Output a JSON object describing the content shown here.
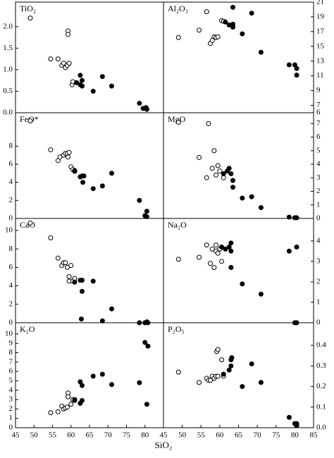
{
  "x_label": "SiO₂",
  "chart_data": [
    {
      "type": "scatter",
      "title": "TiO₂",
      "y_axis_side": "left",
      "xlim": [
        45,
        85
      ],
      "ylim": [
        0,
        2.57
      ],
      "yticks": [
        {
          "value": 0,
          "label": "0.0"
        },
        0.5,
        {
          "value": 1,
          "label": "1.0"
        },
        1.5,
        {
          "value": 2,
          "label": "2.0"
        }
      ],
      "series": [
        {
          "marker": "open",
          "color": "#000000",
          "x": [
            49,
            54.5,
            56.5,
            57.5,
            58,
            58.5,
            59,
            59.2,
            59.2,
            59.5,
            60.3,
            60.5
          ],
          "values": [
            2.2,
            1.25,
            1.25,
            1.1,
            1.15,
            1.05,
            1.1,
            1.9,
            1.82,
            1.15,
            0.65,
            0.72
          ]
        },
        {
          "marker": "filled",
          "color": "#000000",
          "x": [
            61.5,
            62.5,
            62.5,
            63,
            63,
            66,
            68.5,
            71,
            78.5,
            79.5,
            80.5,
            80.3
          ],
          "values": [
            0.7,
            0.87,
            0.65,
            0.75,
            0.62,
            0.5,
            0.84,
            0.62,
            0.22,
            0.1,
            0.08,
            0.12
          ]
        }
      ]
    },
    {
      "type": "scatter",
      "title": "Al₂O₃",
      "y_axis_side": "right",
      "xlim": [
        45,
        85
      ],
      "ylim": [
        6,
        21
      ],
      "yticks": [
        6,
        7,
        9,
        11,
        13,
        15,
        17,
        19,
        21
      ],
      "series": [
        {
          "marker": "open",
          "color": "#000000",
          "x": [
            49,
            54.5,
            56.5,
            57.5,
            58,
            58.5,
            59,
            59.5,
            60.5,
            61
          ],
          "values": [
            16.2,
            17.2,
            19.7,
            15.4,
            15.8,
            16.3,
            16.2,
            16.3,
            18.5,
            18.4
          ]
        },
        {
          "marker": "filled",
          "color": "#000000",
          "x": [
            61.5,
            62.5,
            63.5,
            63.5,
            63.5,
            66,
            68.5,
            71,
            78.5,
            80,
            80.5,
            80.5
          ],
          "values": [
            18.3,
            17.9,
            20.3,
            17.6,
            18,
            16.7,
            19.5,
            14.2,
            12.5,
            12.5,
            11.1,
            12
          ]
        }
      ]
    },
    {
      "type": "scatter",
      "title": "FeO*",
      "y_axis_side": "left",
      "xlim": [
        45,
        85
      ],
      "ylim": [
        0,
        11.7
      ],
      "yticks": [
        0,
        2,
        4,
        6,
        8
      ],
      "series": [
        {
          "marker": "open",
          "color": "#000000",
          "x": [
            49,
            54.5,
            56.5,
            57,
            58,
            58.5,
            59,
            59.2,
            59.5,
            60,
            60.5,
            61
          ],
          "values": [
            10.8,
            7.6,
            6.4,
            6.8,
            7,
            7.2,
            7.2,
            6.8,
            7.3,
            5.7,
            5.4,
            5.2
          ]
        },
        {
          "marker": "filled",
          "color": "#000000",
          "x": [
            61,
            62.5,
            63,
            63.2,
            63.5,
            66,
            68.5,
            71,
            78.5,
            80,
            80.5,
            80.5
          ],
          "values": [
            5.3,
            4.6,
            4.7,
            4,
            4.7,
            3.3,
            3.6,
            5,
            2,
            0.3,
            0.8,
            0.2
          ]
        }
      ]
    },
    {
      "type": "scatter",
      "title": "MgO",
      "y_axis_side": "right",
      "xlim": [
        45,
        85
      ],
      "ylim": [
        0,
        7.8
      ],
      "yticks": [
        0,
        1,
        2,
        3,
        4,
        5,
        6,
        7
      ],
      "series": [
        {
          "marker": "open",
          "color": "#000000",
          "x": [
            49,
            54.5,
            56.5,
            57,
            58,
            58.5,
            59,
            59.5,
            60,
            61
          ],
          "values": [
            7.1,
            4.5,
            3,
            7,
            3.7,
            5,
            3.2,
            3.9,
            3.5,
            3
          ]
        },
        {
          "marker": "filled",
          "color": "#000000",
          "x": [
            61,
            62,
            62.5,
            63,
            63.5,
            63.5,
            66,
            68.5,
            71,
            78.5,
            80,
            80.5
          ],
          "values": [
            3.3,
            3.5,
            3.7,
            3.3,
            2.8,
            2.3,
            1.5,
            1.6,
            0.8,
            0.1,
            0.05,
            0.05
          ]
        }
      ]
    },
    {
      "type": "scatter",
      "title": "CaO",
      "y_axis_side": "left",
      "xlim": [
        45,
        85
      ],
      "ylim": [
        0,
        11.3
      ],
      "yticks": [
        0,
        2,
        4,
        6,
        8,
        10
      ],
      "series": [
        {
          "marker": "open",
          "color": "#000000",
          "x": [
            49,
            54.5,
            56.5,
            57.5,
            58,
            58.5,
            59,
            59.5,
            59.5,
            60,
            60.5,
            61
          ],
          "values": [
            10.8,
            9.2,
            7,
            6.2,
            6.5,
            6.5,
            6,
            5,
            4.5,
            6.2,
            4.5,
            4.8
          ]
        },
        {
          "marker": "filled",
          "color": "#000000",
          "x": [
            61,
            62.5,
            63,
            63,
            62.8,
            66,
            68.5,
            71,
            78.5,
            80,
            80.5,
            80.8
          ],
          "values": [
            4.4,
            4.6,
            4.6,
            3.4,
            0.4,
            4.5,
            0.2,
            1.5,
            0,
            0,
            0.1,
            0
          ]
        }
      ]
    },
    {
      "type": "scatter",
      "title": "Na₂O",
      "y_axis_side": "right",
      "xlim": [
        45,
        85
      ],
      "ylim": [
        0,
        5.1
      ],
      "yticks": [
        0,
        1,
        2,
        3,
        4
      ],
      "series": [
        {
          "marker": "open",
          "color": "#000000",
          "x": [
            49,
            54.5,
            56.5,
            57.5,
            58,
            58.5,
            59,
            59,
            59.5,
            60,
            60.5
          ],
          "values": [
            3.1,
            3.2,
            3.8,
            2.9,
            3.6,
            2.7,
            3.5,
            3.8,
            3.4,
            3.6,
            3
          ]
        },
        {
          "marker": "filled",
          "color": "#000000",
          "x": [
            60.5,
            61.5,
            62.5,
            63,
            63,
            63,
            66,
            71,
            78.5,
            80,
            80.5,
            80.5
          ],
          "values": [
            3.7,
            3.6,
            3.7,
            3.5,
            2.7,
            3.9,
            1.9,
            1.4,
            3.5,
            0,
            3.7,
            0
          ]
        }
      ]
    },
    {
      "type": "scatter",
      "title": "K₂O",
      "y_axis_side": "left",
      "xlim": [
        45,
        85
      ],
      "ylim": [
        0,
        11.2
      ],
      "yticks": [
        0,
        1,
        2,
        3,
        4,
        5,
        6,
        7,
        8,
        9,
        10
      ],
      "xticks": [
        45,
        50,
        55,
        60,
        65,
        70,
        75,
        80
      ],
      "series": [
        {
          "marker": "open",
          "color": "#000000",
          "x": [
            54.5,
            56.5,
            57.5,
            58,
            58.5,
            59,
            59.2,
            59.2,
            60,
            60.5,
            61
          ],
          "values": [
            1.6,
            1.7,
            2.3,
            2,
            2.1,
            2.2,
            3.7,
            3.3,
            2.5,
            3,
            2.9
          ]
        },
        {
          "marker": "filled",
          "color": "#000000",
          "x": [
            61,
            62.5,
            62.5,
            63,
            63,
            66,
            68.5,
            71,
            78.5,
            80,
            80.5,
            80.8
          ],
          "values": [
            3,
            2.6,
            4.9,
            4.5,
            2.9,
            5.5,
            5.7,
            4.6,
            4.8,
            9.1,
            2.5,
            8.7
          ]
        }
      ]
    },
    {
      "type": "scatter",
      "title": "P₂O₅",
      "y_axis_side": "right",
      "xlim": [
        45,
        85
      ],
      "ylim": [
        0,
        0.51
      ],
      "yticks": [
        {
          "value": 0,
          "label": "0.0"
        },
        0.1,
        0.2,
        0.3,
        0.4
      ],
      "xticks": [
        45,
        50,
        55,
        60,
        65,
        70,
        75,
        80,
        85
      ],
      "series": [
        {
          "marker": "open",
          "color": "#000000",
          "x": [
            49,
            54.5,
            56.5,
            57,
            57.5,
            58,
            58.5,
            59,
            59.2,
            59.5,
            59.5,
            60.5,
            61
          ],
          "values": [
            0.27,
            0.22,
            0.24,
            0.23,
            0.23,
            0.25,
            0.24,
            0.25,
            0.37,
            0.38,
            0.25,
            0.33,
            0.25
          ]
        },
        {
          "marker": "filled",
          "color": "#000000",
          "x": [
            61,
            62.5,
            63,
            63,
            63.2,
            66,
            68.5,
            71,
            78.5,
            80,
            80.5,
            80.5
          ],
          "values": [
            0.26,
            0.28,
            0.33,
            0.3,
            0.34,
            0.2,
            0.31,
            0.22,
            0.05,
            0.02,
            0.01,
            0.02
          ]
        }
      ]
    }
  ]
}
